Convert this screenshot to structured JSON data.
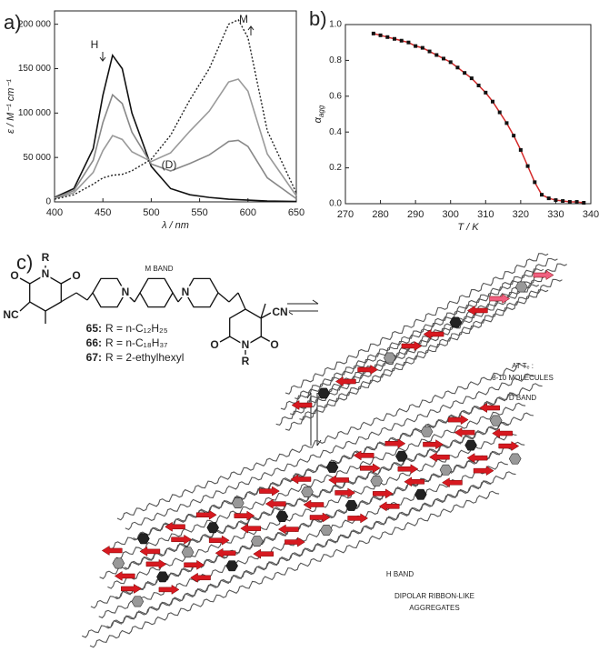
{
  "chart_data": [
    {
      "type": "line",
      "panel": "a)",
      "x_label": "λ / nm",
      "y_label": "ε / M⁻¹ cm⁻¹",
      "x": [
        400,
        420,
        440,
        450,
        460,
        470,
        480,
        500,
        520,
        540,
        560,
        570,
        580,
        590,
        600,
        620,
        650
      ],
      "xlim": [
        400,
        650
      ],
      "xticks": [
        400,
        450,
        500,
        550,
        600,
        650
      ],
      "ylim": [
        0,
        215000
      ],
      "yticks": [
        0,
        {
          "value": 50000,
          "label": "50 000"
        },
        {
          "value": 100000,
          "label": "100 000"
        },
        {
          "value": 150000,
          "label": "150 000"
        },
        {
          "value": 200000,
          "label": "200 000"
        }
      ],
      "series": [
        {
          "color": "#111111",
          "dash": false,
          "values": [
            5000,
            15000,
            60000,
            120000,
            165000,
            150000,
            100000,
            40000,
            15000,
            8000,
            5000,
            4000,
            3000,
            2500,
            2000,
            1000,
            500
          ]
        },
        {
          "color": "#888888",
          "dash": false,
          "values": [
            4300,
            12700,
            46800,
            89300,
            120500,
            110700,
            78600,
            42600,
            34800,
            43300,
            52900,
            60400,
            68000,
            69300,
            62400,
            27100,
            3600
          ]
        },
        {
          "color": "#9a9a9a",
          "dash": false,
          "values": [
            3700,
            10300,
            33200,
            57700,
            74600,
            70300,
            56500,
            45400,
            55200,
            79700,
            102200,
            118600,
            135000,
            138200,
            124600,
            53900,
            6900
          ]
        },
        {
          "color": "#222222",
          "dash": true,
          "values": [
            3000,
            8000,
            20000,
            27000,
            30000,
            31000,
            35000,
            48000,
            75000,
            115000,
            150000,
            175000,
            200000,
            205000,
            185000,
            80000,
            10000
          ]
        }
      ],
      "annotations": [
        "H",
        "M",
        "(D)"
      ]
    },
    {
      "type": "scatter",
      "panel": "b)",
      "x_label": "T / K",
      "y_label": {
        "main": "α",
        "sub": "agg"
      },
      "x": [
        278,
        280,
        282,
        284,
        286,
        288,
        290,
        292,
        294,
        296,
        298,
        300,
        302,
        304,
        306,
        308,
        310,
        312,
        314,
        316,
        318,
        320,
        322,
        324,
        326,
        328,
        330,
        332,
        334,
        336,
        338
      ],
      "values": [
        0.95,
        0.94,
        0.93,
        0.92,
        0.91,
        0.9,
        0.88,
        0.87,
        0.85,
        0.83,
        0.81,
        0.79,
        0.76,
        0.73,
        0.7,
        0.66,
        0.62,
        0.57,
        0.51,
        0.45,
        0.38,
        0.3,
        0.21,
        0.12,
        0.05,
        0.03,
        0.02,
        0.015,
        0.01,
        0.01,
        0.005
      ],
      "color": "#111111",
      "line_color": "#d42a2a",
      "xlim": [
        270,
        340
      ],
      "xticks": [
        270,
        280,
        290,
        300,
        310,
        320,
        330,
        340
      ],
      "ylim": [
        0,
        1
      ],
      "yticks": [
        {
          "value": 0,
          "label": "0.0"
        },
        0.2,
        0.4,
        0.6,
        0.8,
        {
          "value": 1,
          "label": "1.0"
        }
      ]
    }
  ],
  "diagram": {
    "panel": "c)",
    "m_band": "M BAND",
    "atoms": [
      "R",
      "N",
      "O",
      "O",
      "NC",
      "N",
      "N",
      "CN",
      "O",
      "O",
      "N",
      "R"
    ],
    "compounds": [
      {
        "id": "65:",
        "r": "R = n-C₁₂H₂₅"
      },
      {
        "id": "66:",
        "r": "R = n-C₁₈H₃₇"
      },
      {
        "id": "67:",
        "r": "R = 2-ethylhexyl"
      }
    ],
    "d_band": {
      "line1": "AT Tₑ :",
      "line2": "8-10 MOLECULES",
      "band": "D BAND"
    },
    "h_band": {
      "band": "H BAND",
      "line1": "DIPOLAR RIBBON-LIKE",
      "line2": "AGGREGATES"
    }
  }
}
